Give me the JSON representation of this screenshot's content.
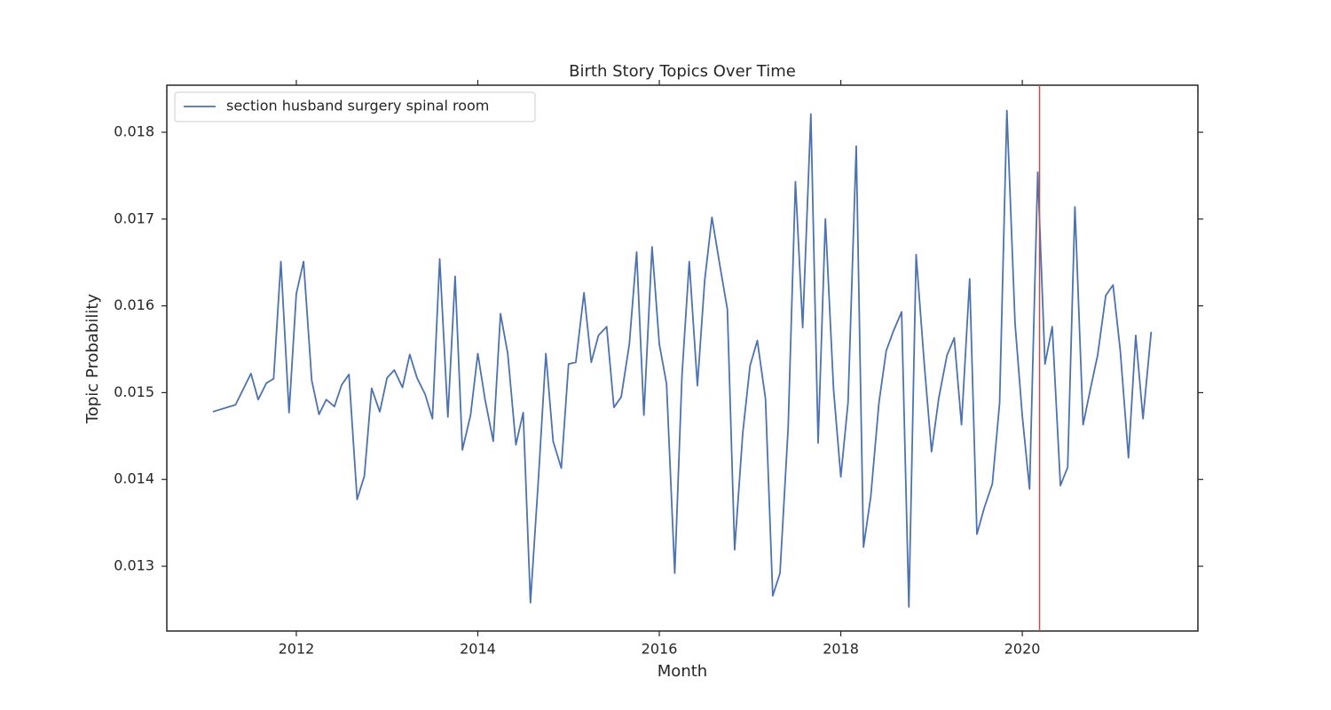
{
  "chart_data": {
    "type": "line",
    "title": "Birth Story Topics Over Time",
    "xlabel": "Month",
    "ylabel": "Topic Probability",
    "x": [
      2011.08,
      2011.33,
      2011.5,
      2011.58,
      2011.67,
      2011.75,
      2011.83,
      2011.92,
      2012,
      2012.08,
      2012.17,
      2012.25,
      2012.33,
      2012.42,
      2012.5,
      2012.58,
      2012.67,
      2012.75,
      2012.83,
      2012.92,
      2013,
      2013.08,
      2013.17,
      2013.25,
      2013.33,
      2013.42,
      2013.5,
      2013.58,
      2013.67,
      2013.75,
      2013.83,
      2013.92,
      2014,
      2014.08,
      2014.17,
      2014.25,
      2014.33,
      2014.42,
      2014.5,
      2014.58,
      2014.67,
      2014.75,
      2014.83,
      2014.92,
      2015,
      2015.08,
      2015.17,
      2015.25,
      2015.33,
      2015.42,
      2015.5,
      2015.58,
      2015.67,
      2015.75,
      2015.83,
      2015.92,
      2016,
      2016.08,
      2016.17,
      2016.25,
      2016.33,
      2016.42,
      2016.5,
      2016.58,
      2016.67,
      2016.75,
      2016.83,
      2016.92,
      2017,
      2017.08,
      2017.17,
      2017.25,
      2017.33,
      2017.42,
      2017.5,
      2017.58,
      2017.67,
      2017.75,
      2017.83,
      2017.92,
      2018,
      2018.08,
      2018.17,
      2018.25,
      2018.33,
      2018.42,
      2018.5,
      2018.58,
      2018.67,
      2018.75,
      2018.83,
      2018.92,
      2019,
      2019.08,
      2019.17,
      2019.25,
      2019.33,
      2019.42,
      2019.5,
      2019.58,
      2019.67,
      2019.75,
      2019.83,
      2019.92,
      2020,
      2020.08,
      2020.17,
      2020.25,
      2020.33,
      2020.42,
      2020.5,
      2020.58,
      2020.67,
      2020.75,
      2020.83,
      2020.92,
      2021,
      2021.08,
      2021.17,
      2021.25,
      2021.33,
      2021.42
    ],
    "series": [
      {
        "name": "section husband surgery spinal room",
        "color": "#4c72b0",
        "values": [
          0.01478,
          0.01486,
          0.01522,
          0.01492,
          0.01511,
          0.01516,
          0.01651,
          0.01477,
          0.01614,
          0.01651,
          0.01514,
          0.01475,
          0.01492,
          0.01484,
          0.01509,
          0.01521,
          0.01377,
          0.01404,
          0.01505,
          0.01478,
          0.01517,
          0.01526,
          0.01506,
          0.01544,
          0.01517,
          0.01498,
          0.0147,
          0.01654,
          0.01472,
          0.01634,
          0.01434,
          0.01474,
          0.01545,
          0.01492,
          0.01444,
          0.01591,
          0.01545,
          0.0144,
          0.01477,
          0.01258,
          0.01404,
          0.01545,
          0.01444,
          0.01413,
          0.01533,
          0.01535,
          0.01615,
          0.01535,
          0.01566,
          0.01576,
          0.01483,
          0.01495,
          0.01556,
          0.01662,
          0.01474,
          0.01668,
          0.01556,
          0.0151,
          0.01292,
          0.0152,
          0.01651,
          0.01508,
          0.01629,
          0.01702,
          0.01645,
          0.01596,
          0.01319,
          0.01454,
          0.01531,
          0.0156,
          0.01493,
          0.01266,
          0.01292,
          0.0146,
          0.01743,
          0.01575,
          0.01821,
          0.01442,
          0.017,
          0.01504,
          0.01403,
          0.01489,
          0.01784,
          0.01322,
          0.0138,
          0.01488,
          0.01548,
          0.01571,
          0.01593,
          0.01253,
          0.01659,
          0.01533,
          0.01432,
          0.01494,
          0.01543,
          0.01563,
          0.01463,
          0.01631,
          0.01337,
          0.01367,
          0.01395,
          0.01488,
          0.01825,
          0.0158,
          0.01473,
          0.01389,
          0.01754,
          0.01533,
          0.01576,
          0.01393,
          0.01414,
          0.01714,
          0.01463,
          0.01504,
          0.01543,
          0.01612,
          0.01624,
          0.01548,
          0.01425,
          0.01566,
          0.0147,
          0.0157
        ]
      }
    ],
    "xlim": [
      2010.573,
      2021.935
    ],
    "xticks": [
      2012,
      2014,
      2016,
      2018,
      2020
    ],
    "ylim": [
      0.012254,
      0.018542
    ],
    "yticks": [
      0.013,
      0.014,
      0.015,
      0.016,
      0.017,
      0.018
    ],
    "vline": {
      "x": 2020.19,
      "color": "#c44e52"
    },
    "legend": "upper left",
    "grid": false
  }
}
